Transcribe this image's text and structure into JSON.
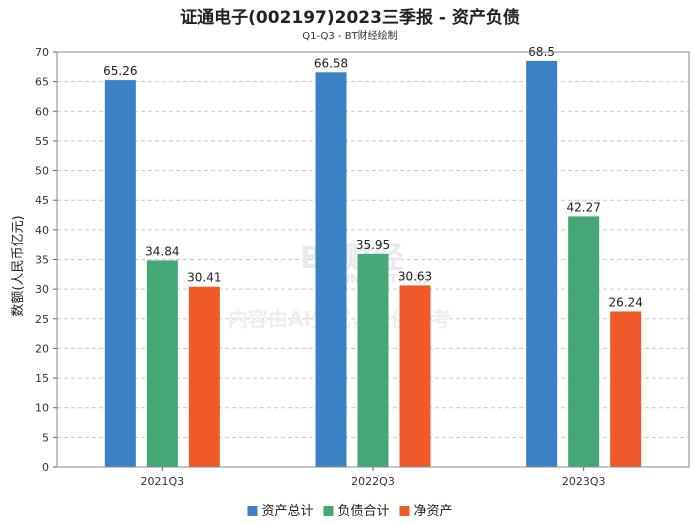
{
  "chart_data": {
    "type": "bar",
    "title": "证通电子(002197)2023三季报 - 资产负债",
    "subtitle": "Q1-Q3 - BT财经绘制",
    "ylabel": "数额(人民币亿元)",
    "categories": [
      "2021Q3",
      "2022Q3",
      "2023Q3"
    ],
    "series": [
      {
        "name": "资产总计",
        "color": "#3a82c4",
        "values": [
          65.26,
          66.58,
          68.5
        ]
      },
      {
        "name": "负债合计",
        "color": "#44a876",
        "values": [
          34.84,
          35.95,
          42.27
        ]
      },
      {
        "name": "净资产",
        "color": "#f05a28",
        "values": [
          30.41,
          30.63,
          26.24
        ]
      }
    ],
    "ylim": [
      0,
      70
    ],
    "yticks": [
      0,
      5,
      10,
      15,
      20,
      25,
      30,
      35,
      40,
      45,
      50,
      55,
      60,
      65,
      70
    ],
    "grid": true,
    "legend_position": "bottom-center"
  },
  "watermark": {
    "brand": "BT财经",
    "brand_sub": "BUSINESS TIMES",
    "notice": "内容由AI生成，仅供参考"
  }
}
